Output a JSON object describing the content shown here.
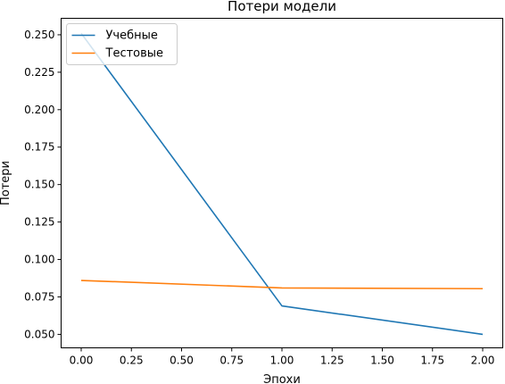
{
  "chart_data": {
    "type": "line",
    "title": "Потери модели",
    "xlabel": "Эпохи",
    "ylabel": "Потери",
    "xlim": [
      -0.1,
      2.1
    ],
    "ylim": [
      0.041,
      0.261
    ],
    "xticks": [
      0.0,
      0.25,
      0.5,
      0.75,
      1.0,
      1.25,
      1.5,
      1.75,
      2.0
    ],
    "xtick_labels": [
      "0.00",
      "0.25",
      "0.50",
      "0.75",
      "1.00",
      "1.25",
      "1.50",
      "1.75",
      "2.00"
    ],
    "yticks": [
      0.05,
      0.075,
      0.1,
      0.125,
      0.15,
      0.175,
      0.2,
      0.225,
      0.25
    ],
    "ytick_labels": [
      "0.050",
      "0.075",
      "0.100",
      "0.125",
      "0.150",
      "0.175",
      "0.200",
      "0.225",
      "0.250"
    ],
    "grid": false,
    "legend_position": "top-left",
    "series": [
      {
        "name": "Учебные",
        "color": "#1f77b4",
        "x": [
          0,
          1,
          2
        ],
        "y": [
          0.251,
          0.069,
          0.05
        ]
      },
      {
        "name": "Тестовые",
        "color": "#ff7f0e",
        "x": [
          0,
          1,
          2
        ],
        "y": [
          0.086,
          0.081,
          0.0805
        ]
      }
    ]
  }
}
